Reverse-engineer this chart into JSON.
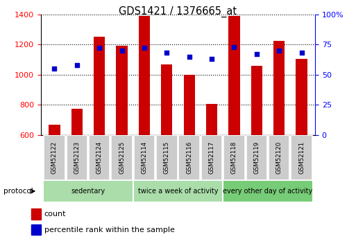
{
  "title": "GDS1421 / 1376665_at",
  "samples": [
    "GSM52122",
    "GSM52123",
    "GSM52124",
    "GSM52125",
    "GSM52114",
    "GSM52115",
    "GSM52116",
    "GSM52117",
    "GSM52118",
    "GSM52119",
    "GSM52120",
    "GSM52121"
  ],
  "counts": [
    670,
    775,
    1250,
    1190,
    1390,
    1070,
    1000,
    805,
    1390,
    1060,
    1225,
    1105
  ],
  "percentiles": [
    55,
    58,
    72,
    70,
    72,
    68,
    65,
    63,
    73,
    67,
    70,
    68
  ],
  "groups": [
    {
      "label": "sedentary",
      "start": 0,
      "end": 4
    },
    {
      "label": "twice a week of activity",
      "start": 4,
      "end": 8
    },
    {
      "label": "every other day of activity",
      "start": 8,
      "end": 12
    }
  ],
  "group_colors": [
    "#aaddaa",
    "#aaddaa",
    "#77cc77"
  ],
  "ylim_left": [
    600,
    1400
  ],
  "ylim_right": [
    0,
    100
  ],
  "bar_color": "#cc0000",
  "dot_color": "#0000cc",
  "bar_width": 0.5,
  "background_color": "#ffffff",
  "sample_box_color": "#cccccc",
  "legend_count_label": "count",
  "legend_pct_label": "percentile rank within the sample",
  "protocol_label": "protocol",
  "left_yticks": [
    600,
    800,
    1000,
    1200,
    1400
  ],
  "right_yticks": [
    0,
    25,
    50,
    75,
    100
  ],
  "right_yticklabels": [
    "0",
    "25",
    "50",
    "75",
    "100%"
  ]
}
